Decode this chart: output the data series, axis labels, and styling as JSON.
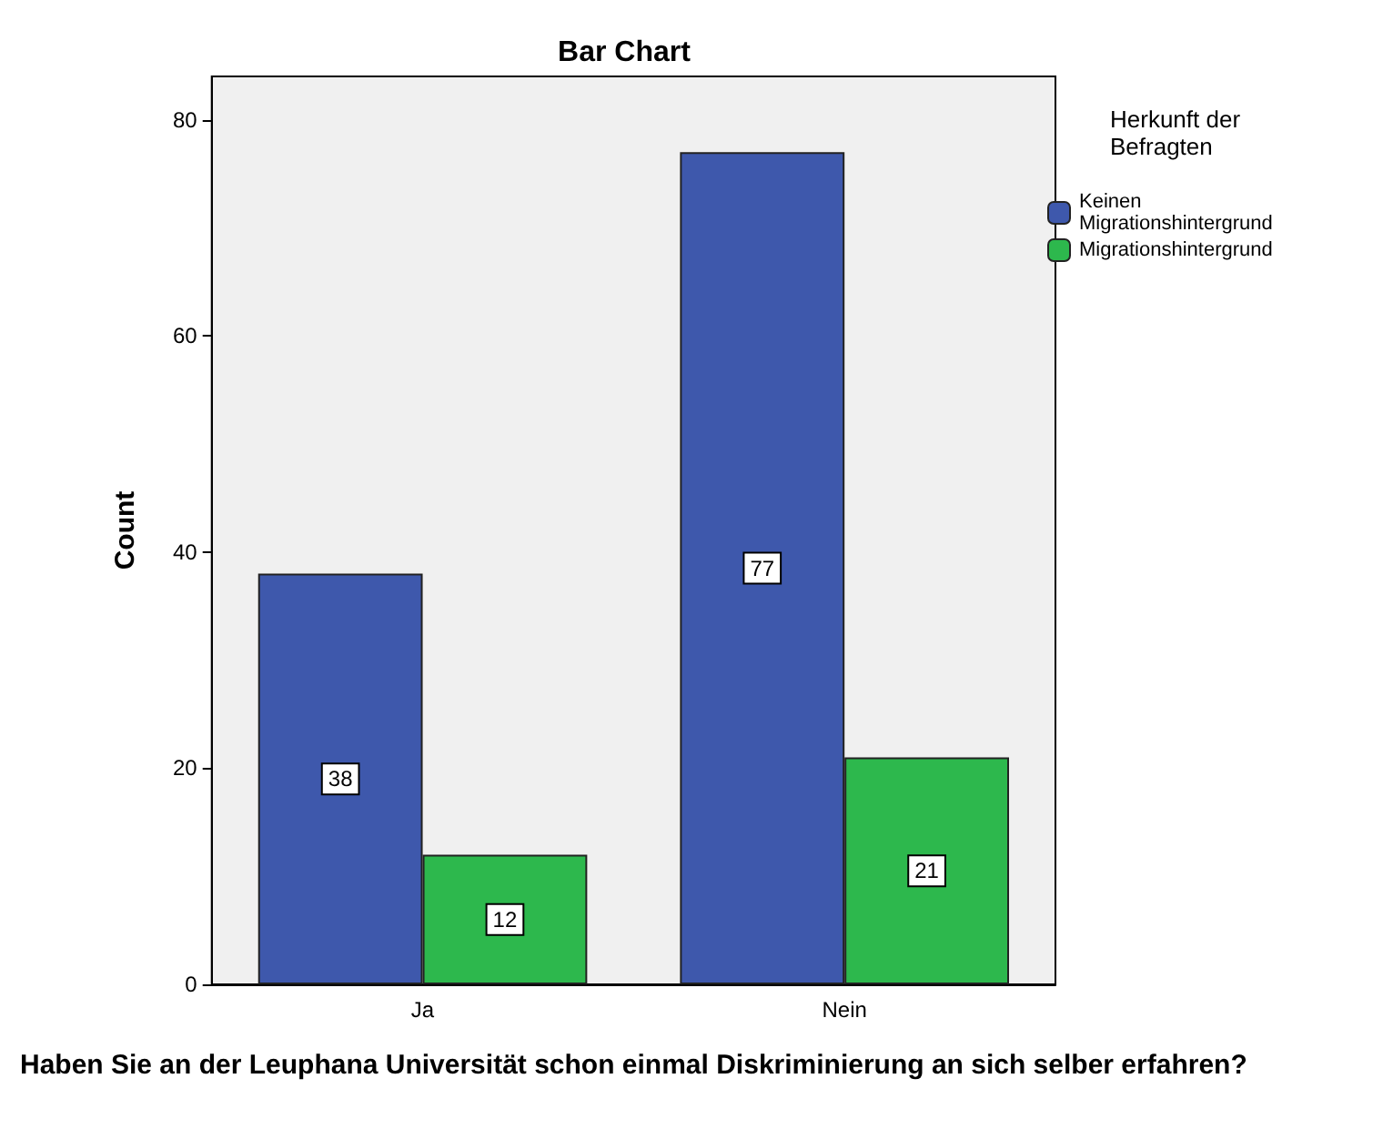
{
  "chart_data": {
    "type": "bar",
    "title": "Bar Chart",
    "xlabel": "Haben Sie an der Leuphana Universität schon einmal Diskriminierung an sich selber erfahren?",
    "ylabel": "Count",
    "legend_title": "Herkunft der Befragten",
    "categories": [
      "Ja",
      "Nein"
    ],
    "series": [
      {
        "name": "Keinen Migrationshintergrund",
        "color": "#3e58ac",
        "values": [
          38,
          77
        ]
      },
      {
        "name": "Migrationshintergrund",
        "color": "#2db84d",
        "values": [
          12,
          21
        ]
      }
    ],
    "ylim": [
      0,
      84
    ],
    "yticks": [
      0,
      20,
      40,
      60,
      80
    ],
    "grid": false,
    "legend": "right",
    "data_labels": true
  }
}
